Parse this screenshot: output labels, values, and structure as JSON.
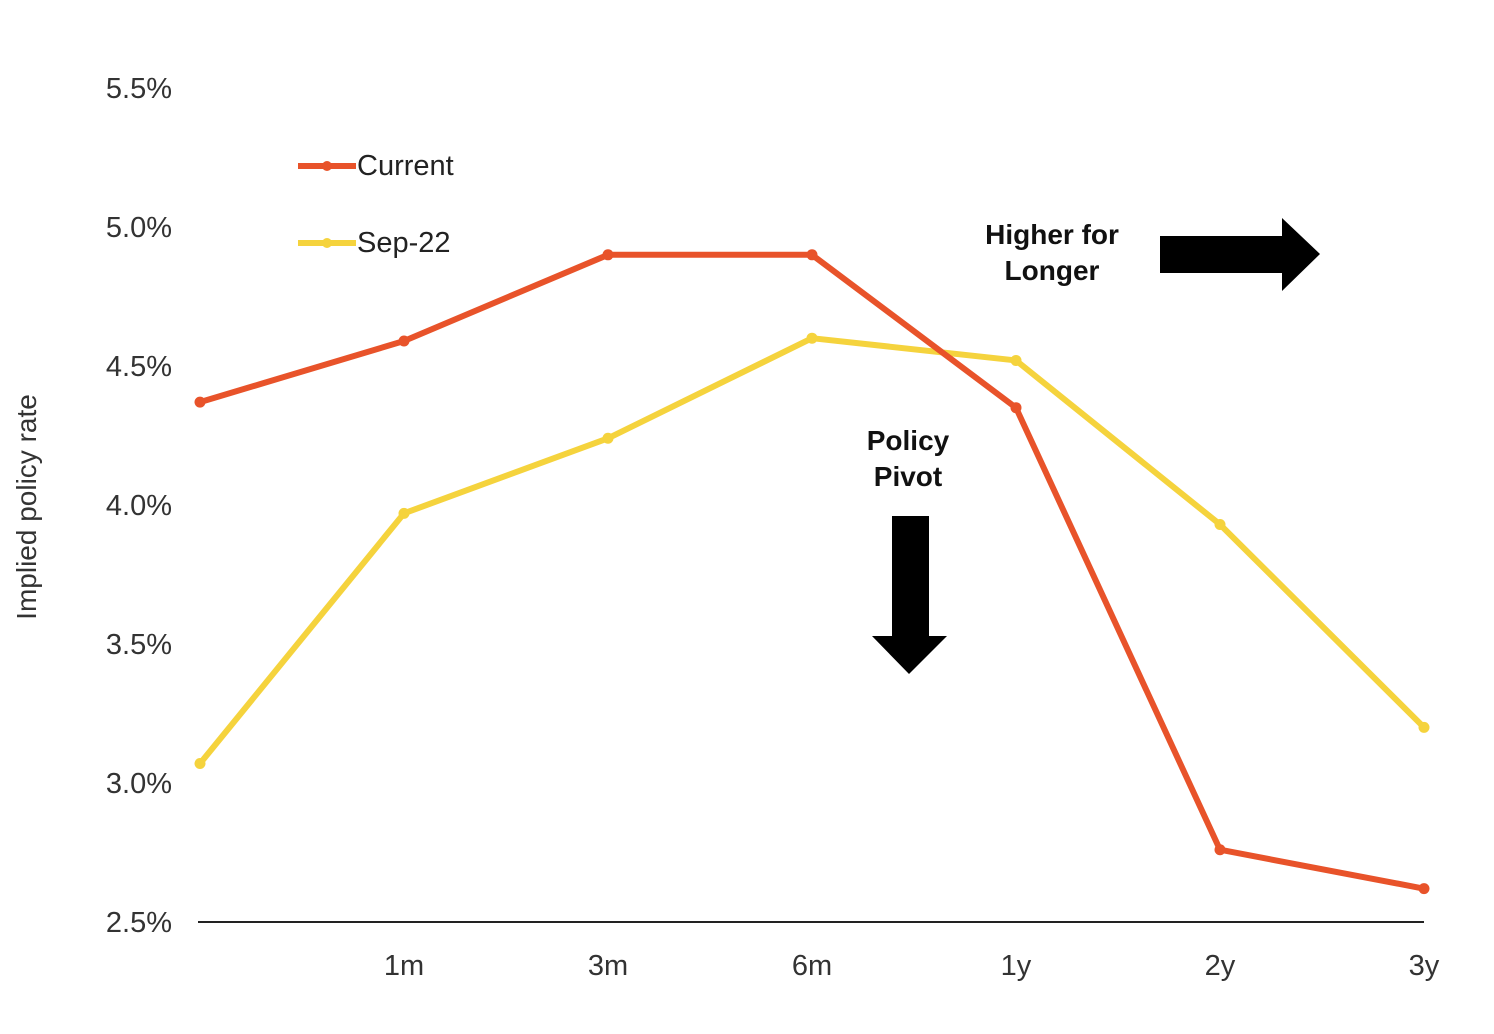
{
  "chart_data": {
    "type": "line",
    "title": "",
    "xlabel": "",
    "ylabel": "Implied policy rate",
    "categories": [
      "",
      "1m",
      "3m",
      "6m",
      "1y",
      "2y",
      "3y"
    ],
    "ylim": [
      2.5,
      5.5
    ],
    "yticks": [
      "5.5%",
      "5.0%",
      "4.5%",
      "4.0%",
      "3.5%",
      "3.0%",
      "2.5%"
    ],
    "ytick_values": [
      5.5,
      5.0,
      4.5,
      4.0,
      3.5,
      3.0,
      2.5
    ],
    "grid": false,
    "legend_position": "top-left",
    "series": [
      {
        "name": "Current",
        "color": "#E8532A",
        "values": [
          4.37,
          4.59,
          4.9,
          4.9,
          4.35,
          2.76,
          2.62
        ]
      },
      {
        "name": "Sep-22",
        "color": "#F5D33D",
        "values": [
          3.07,
          3.97,
          4.24,
          4.6,
          4.52,
          3.93,
          3.2
        ]
      }
    ],
    "annotations": {
      "higher_for_longer": {
        "line1": "Higher for",
        "line2": "Longer",
        "arrow": "right-arrow-icon"
      },
      "policy_pivot": {
        "line1": "Policy",
        "line2": "Pivot",
        "arrow": "down-arrow-icon"
      }
    }
  }
}
